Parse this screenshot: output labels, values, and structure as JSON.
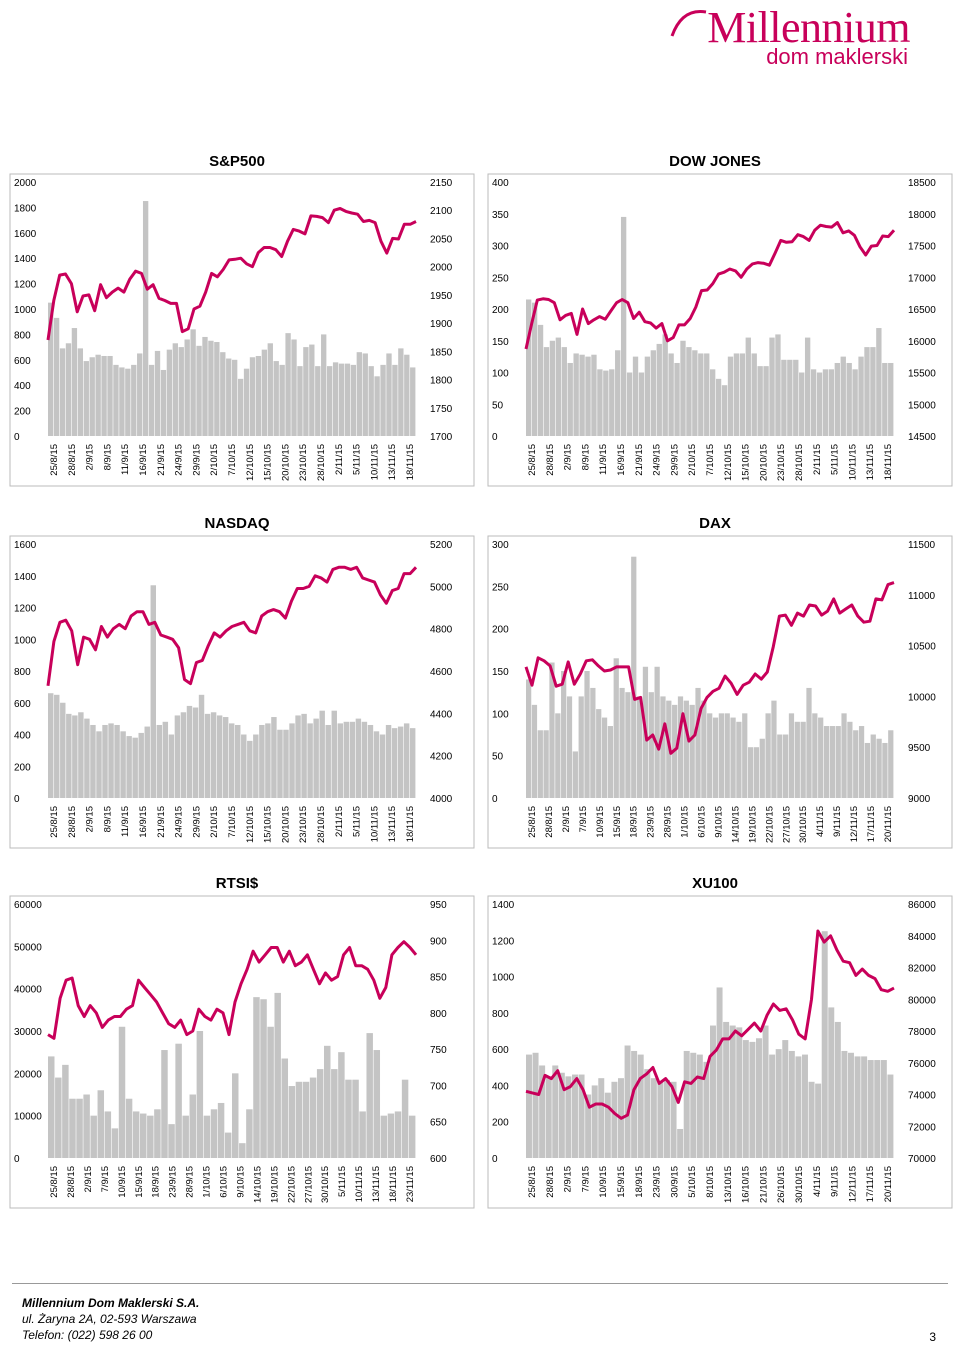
{
  "brand": {
    "name": "Millennium",
    "sub": "dom maklerski",
    "color": "#c8005a"
  },
  "colors": {
    "bar": "#c4c4c4",
    "line": "#c8005a"
  },
  "footer": {
    "company": "Millennium Dom Maklerski S.A.",
    "address": "ul. Żaryna 2A, 02-593 Warszawa",
    "phone": "Telefon: (022) 598 26 00",
    "page": "3"
  },
  "chart_data": [
    {
      "type": "bar+line",
      "title": "S&P500",
      "left_axis": {
        "min": 0,
        "max": 2000,
        "ticks": [
          0,
          200,
          400,
          600,
          800,
          1000,
          1200,
          1400,
          1600,
          1800,
          2000
        ]
      },
      "right_axis": {
        "min": 1700,
        "max": 2150,
        "ticks": [
          1700,
          1750,
          1800,
          1850,
          1900,
          1950,
          2000,
          2050,
          2100,
          2150
        ]
      },
      "x_labels": [
        "25/8/15",
        "28/8/15",
        "2/9/15",
        "8/9/15",
        "11/9/15",
        "16/9/15",
        "21/9/15",
        "24/9/15",
        "29/9/15",
        "2/10/15",
        "7/10/15",
        "12/10/15",
        "15/10/15",
        "20/10/15",
        "23/10/15",
        "28/10/15",
        "2/11/15",
        "5/11/15",
        "10/11/15",
        "13/11/15",
        "18/11/15"
      ],
      "bars": [
        1050,
        930,
        690,
        730,
        850,
        690,
        590,
        620,
        640,
        630,
        630,
        560,
        540,
        530,
        560,
        650,
        1850,
        560,
        670,
        520,
        680,
        730,
        700,
        760,
        840,
        710,
        780,
        750,
        740,
        660,
        610,
        600,
        450,
        530,
        620,
        630,
        680,
        730,
        590,
        560,
        810,
        760,
        550,
        700,
        720,
        550,
        800,
        550,
        580,
        570,
        570,
        560,
        660,
        650,
        550,
        470,
        560,
        650,
        560,
        690,
        640,
        540
      ],
      "line": [
        1870,
        1940,
        1985,
        1987,
        1970,
        1920,
        1948,
        1950,
        1922,
        1968,
        1945,
        1955,
        1962,
        1955,
        1978,
        1992,
        1988,
        1960,
        1968,
        1944,
        1940,
        1935,
        1935,
        1885,
        1890,
        1925,
        1930,
        1955,
        1988,
        1982,
        1995,
        2012,
        2013,
        2015,
        2005,
        2000,
        2025,
        2034,
        2034,
        2030,
        2018,
        2045,
        2066,
        2063,
        2058,
        2090,
        2089,
        2087,
        2078,
        2100,
        2103,
        2098,
        2095,
        2093,
        2080,
        2082,
        2078,
        2045,
        2024,
        2050,
        2049,
        2075,
        2075,
        2080
      ]
    },
    {
      "type": "bar+line",
      "title": "DOW JONES",
      "left_axis": {
        "min": 0,
        "max": 400,
        "ticks": [
          0,
          50,
          100,
          150,
          200,
          250,
          300,
          350,
          400
        ]
      },
      "right_axis": {
        "min": 14500,
        "max": 18500,
        "ticks": [
          14500,
          15000,
          15500,
          16000,
          16500,
          17000,
          17500,
          18000,
          18500
        ]
      },
      "x_labels": [
        "25/8/15",
        "28/8/15",
        "2/9/15",
        "8/9/15",
        "11/9/15",
        "16/9/15",
        "21/9/15",
        "24/9/15",
        "29/9/15",
        "2/10/15",
        "7/10/15",
        "12/10/15",
        "15/10/15",
        "20/10/15",
        "23/10/15",
        "28/10/15",
        "2/11/15",
        "5/11/15",
        "10/11/15",
        "13/11/15",
        "18/11/15"
      ],
      "bars": [
        215,
        210,
        175,
        140,
        150,
        155,
        140,
        115,
        130,
        128,
        125,
        128,
        105,
        103,
        105,
        135,
        345,
        100,
        125,
        100,
        125,
        135,
        145,
        160,
        130,
        115,
        150,
        140,
        135,
        130,
        130,
        105,
        90,
        80,
        125,
        130,
        130,
        155,
        130,
        110,
        110,
        155,
        160,
        120,
        120,
        120,
        100,
        155,
        105,
        100,
        105,
        105,
        115,
        125,
        115,
        105,
        125,
        140,
        140,
        170,
        115,
        115
      ],
      "line": [
        15870,
        16270,
        16640,
        16660,
        16650,
        16600,
        16330,
        16400,
        16430,
        16100,
        16500,
        16270,
        16330,
        16380,
        16340,
        16470,
        16600,
        16650,
        16600,
        16350,
        16450,
        16300,
        16280,
        16200,
        16270,
        16000,
        16050,
        16250,
        16250,
        16350,
        16530,
        16790,
        16800,
        16900,
        17050,
        17080,
        17130,
        17100,
        17000,
        17130,
        17210,
        17230,
        17220,
        17190,
        17380,
        17580,
        17550,
        17560,
        17670,
        17640,
        17580,
        17740,
        17820,
        17800,
        17790,
        17860,
        17700,
        17730,
        17660,
        17480,
        17350,
        17490,
        17500,
        17650,
        17640,
        17740
      ]
    },
    {
      "type": "bar+line",
      "title": "NASDAQ",
      "left_axis": {
        "min": 0,
        "max": 1600,
        "ticks": [
          0,
          200,
          400,
          600,
          800,
          1000,
          1200,
          1400,
          1600
        ]
      },
      "right_axis": {
        "min": 4000,
        "max": 5200,
        "ticks": [
          4000,
          4200,
          4400,
          4600,
          4800,
          5000,
          5200
        ]
      },
      "x_labels": [
        "25/8/15",
        "28/8/15",
        "2/9/15",
        "8/9/15",
        "11/9/15",
        "16/9/15",
        "21/9/15",
        "24/9/15",
        "29/9/15",
        "2/10/15",
        "7/10/15",
        "12/10/15",
        "15/10/15",
        "20/10/15",
        "23/10/15",
        "28/10/15",
        "2/11/15",
        "5/11/15",
        "10/11/15",
        "13/11/15",
        "18/11/15"
      ],
      "bars": [
        660,
        650,
        600,
        530,
        520,
        540,
        500,
        460,
        420,
        460,
        470,
        460,
        420,
        390,
        380,
        410,
        450,
        1340,
        460,
        480,
        400,
        520,
        540,
        580,
        570,
        650,
        530,
        540,
        520,
        510,
        470,
        460,
        400,
        360,
        400,
        460,
        470,
        510,
        430,
        430,
        470,
        520,
        530,
        470,
        500,
        550,
        460,
        550,
        470,
        480,
        480,
        500,
        480,
        460,
        420,
        400,
        460,
        440,
        450,
        470,
        440
      ],
      "line": [
        4530,
        4740,
        4830,
        4840,
        4790,
        4630,
        4760,
        4750,
        4700,
        4810,
        4760,
        4800,
        4820,
        4800,
        4860,
        4880,
        4880,
        4820,
        4830,
        4770,
        4760,
        4750,
        4710,
        4560,
        4540,
        4640,
        4650,
        4720,
        4780,
        4760,
        4790,
        4810,
        4820,
        4830,
        4790,
        4780,
        4860,
        4880,
        4890,
        4880,
        4850,
        4930,
        4990,
        4990,
        5000,
        5050,
        5040,
        5020,
        5080,
        5090,
        5090,
        5080,
        5090,
        5040,
        5030,
        5020,
        4960,
        4920,
        4980,
        4990,
        5060,
        5060,
        5090
      ]
    },
    {
      "type": "bar+line",
      "title": "DAX",
      "left_axis": {
        "min": 0,
        "max": 300,
        "ticks": [
          0,
          50,
          100,
          150,
          200,
          250,
          300
        ]
      },
      "right_axis": {
        "min": 9000,
        "max": 11500,
        "ticks": [
          9000,
          9500,
          10000,
          10500,
          11000,
          11500
        ]
      },
      "x_labels": [
        "25/8/15",
        "28/8/15",
        "2/9/15",
        "7/9/15",
        "10/9/15",
        "15/9/15",
        "18/9/15",
        "23/9/15",
        "28/9/15",
        "1/10/15",
        "6/10/15",
        "9/10/15",
        "14/10/15",
        "19/10/15",
        "22/10/15",
        "27/10/15",
        "30/10/15",
        "4/11/15",
        "9/11/15",
        "12/11/15",
        "17/11/15",
        "20/11/15"
      ],
      "bars": [
        140,
        110,
        80,
        80,
        160,
        100,
        150,
        120,
        55,
        120,
        150,
        130,
        105,
        95,
        85,
        165,
        130,
        125,
        285,
        120,
        155,
        125,
        155,
        120,
        115,
        110,
        120,
        115,
        110,
        130,
        115,
        100,
        95,
        100,
        100,
        95,
        90,
        100,
        60,
        60,
        70,
        100,
        115,
        75,
        75,
        100,
        90,
        90,
        130,
        100,
        95,
        85,
        85,
        85,
        100,
        90,
        80,
        85,
        65,
        75,
        70,
        65,
        80
      ],
      "line": [
        10290,
        10110,
        10380,
        10350,
        10300,
        10100,
        10120,
        10340,
        10120,
        10220,
        10350,
        10360,
        10300,
        10250,
        10260,
        10290,
        10290,
        10290,
        9970,
        9990,
        9570,
        9620,
        9480,
        9730,
        9440,
        9490,
        9830,
        9560,
        9620,
        9880,
        9990,
        10050,
        10080,
        10200,
        10130,
        10020,
        10110,
        10140,
        10220,
        10170,
        10240,
        10490,
        10790,
        10800,
        10700,
        10820,
        10790,
        10900,
        10890,
        10800,
        10840,
        10960,
        10820,
        10860,
        10900,
        10790,
        10730,
        10740,
        10960,
        10950,
        11100,
        11120
      ]
    },
    {
      "type": "bar+line",
      "title": "RTSI$",
      "left_axis": {
        "min": 0,
        "max": 60000,
        "ticks": [
          0,
          10000,
          20000,
          30000,
          40000,
          50000,
          60000
        ]
      },
      "right_axis": {
        "min": 600,
        "max": 950,
        "ticks": [
          600,
          650,
          700,
          750,
          800,
          850,
          900,
          950
        ]
      },
      "x_labels": [
        "25/8/15",
        "28/8/15",
        "2/9/15",
        "7/9/15",
        "10/9/15",
        "15/9/15",
        "18/9/15",
        "23/9/15",
        "28/9/15",
        "1/10/15",
        "6/10/15",
        "9/10/15",
        "14/10/15",
        "19/10/15",
        "22/10/15",
        "27/10/15",
        "30/10/15",
        "5/11/15",
        "10/11/15",
        "13/11/15",
        "18/11/15",
        "23/11/15"
      ],
      "bars": [
        24000,
        19000,
        22000,
        14000,
        14000,
        15000,
        10000,
        16000,
        11000,
        7000,
        31000,
        14000,
        11000,
        10500,
        10000,
        11500,
        25500,
        8000,
        27000,
        10000,
        15000,
        30000,
        10000,
        11500,
        13000,
        6000,
        20000,
        3500,
        11500,
        38000,
        37500,
        31000,
        39000,
        23500,
        17000,
        18000,
        18000,
        19000,
        21000,
        26500,
        21000,
        25000,
        18500,
        18500,
        11000,
        29500,
        25500,
        10000,
        10500,
        11000,
        18500,
        10000
      ],
      "line": [
        770,
        765,
        820,
        845,
        848,
        810,
        795,
        810,
        800,
        780,
        790,
        795,
        795,
        805,
        810,
        845,
        835,
        825,
        815,
        800,
        785,
        780,
        790,
        770,
        775,
        805,
        795,
        790,
        805,
        800,
        770,
        815,
        840,
        860,
        885,
        870,
        880,
        890,
        890,
        870,
        885,
        865,
        870,
        880,
        860,
        840,
        855,
        845,
        850,
        880,
        890,
        865,
        865,
        860,
        845,
        820,
        835,
        880,
        890,
        898,
        890,
        880
      ]
    },
    {
      "type": "bar+line",
      "title": "XU100",
      "left_axis": {
        "min": 0,
        "max": 1400,
        "ticks": [
          0,
          200,
          400,
          600,
          800,
          1000,
          1200,
          1400
        ]
      },
      "right_axis": {
        "min": 70000,
        "max": 86000,
        "ticks": [
          70000,
          72000,
          74000,
          76000,
          78000,
          80000,
          82000,
          84000,
          86000
        ]
      },
      "x_labels": [
        "25/8/15",
        "28/8/15",
        "2/9/15",
        "7/9/15",
        "10/9/15",
        "15/9/15",
        "18/9/15",
        "23/9/15",
        "30/9/15",
        "5/10/15",
        "8/10/15",
        "13/10/15",
        "16/10/15",
        "21/10/15",
        "26/10/15",
        "30/10/15",
        "4/11/15",
        "9/11/15",
        "12/11/15",
        "17/11/15",
        "20/11/15"
      ],
      "bars": [
        570,
        580,
        510,
        450,
        510,
        470,
        450,
        460,
        460,
        350,
        400,
        440,
        360,
        420,
        440,
        620,
        590,
        570,
        490,
        440,
        420,
        430,
        420,
        160,
        590,
        580,
        570,
        530,
        730,
        940,
        750,
        730,
        720,
        650,
        640,
        660,
        730,
        570,
        600,
        650,
        590,
        560,
        570,
        420,
        410,
        1250,
        830,
        750,
        590,
        580,
        560,
        560,
        540,
        540,
        540,
        460
      ],
      "line": [
        74200,
        74100,
        74000,
        75200,
        75000,
        75500,
        74300,
        74500,
        75000,
        74300,
        73200,
        73400,
        73400,
        73200,
        72800,
        72500,
        72700,
        74300,
        75000,
        75300,
        75700,
        74700,
        75000,
        74500,
        73500,
        74800,
        74700,
        75100,
        75000,
        76400,
        76800,
        77500,
        77500,
        78000,
        77700,
        78100,
        78500,
        78000,
        79000,
        79700,
        79300,
        79400,
        78700,
        77800,
        77500,
        80000,
        84300,
        83600,
        84000,
        83100,
        82400,
        82300,
        81500,
        81900,
        81500,
        81300,
        80600,
        80500,
        80700
      ]
    }
  ]
}
